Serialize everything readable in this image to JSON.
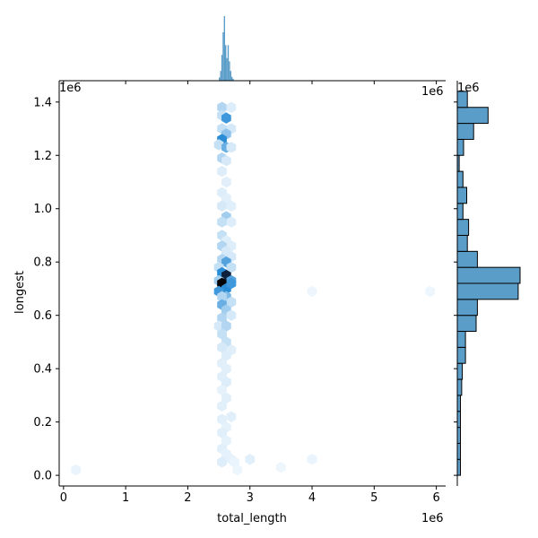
{
  "chart_data": {
    "type": "scatter",
    "subtype": "hexbin joint plot with marginal histograms",
    "xlabel": "total_length",
    "ylabel": "longest",
    "x_offset_label": "1e6",
    "y_offset_label": "1e6",
    "x_ticks": [
      "0",
      "1",
      "2",
      "3",
      "4",
      "5",
      "6"
    ],
    "y_ticks": [
      "0.0",
      "0.2",
      "0.4",
      "0.6",
      "0.8",
      "1.0",
      "1.2",
      "1.4"
    ],
    "x_tick_values": [
      0,
      1,
      2,
      3,
      4,
      5,
      6
    ],
    "y_tick_values": [
      0,
      0.2,
      0.4,
      0.6,
      0.8,
      1.0,
      1.2,
      1.4
    ],
    "xlim": [
      -0.07,
      6.15
    ],
    "ylim": [
      -0.04,
      1.48
    ],
    "units": "x1e6",
    "grid": false,
    "colors": {
      "hex_max": "#000000",
      "hex_mid": "#2b8cd6",
      "hex_low": "#eaf4fc",
      "hist_fill": "#5b9dc9",
      "hist_edge": "#000000"
    },
    "hexbins": [
      {
        "x": 2.55,
        "y": 1.38,
        "c": 0.25
      },
      {
        "x": 2.7,
        "y": 1.38,
        "c": 0.12
      },
      {
        "x": 2.55,
        "y": 1.35,
        "c": 0.2
      },
      {
        "x": 2.62,
        "y": 1.34,
        "c": 0.55
      },
      {
        "x": 2.7,
        "y": 1.3,
        "c": 0.15
      },
      {
        "x": 2.55,
        "y": 1.3,
        "c": 0.2
      },
      {
        "x": 2.62,
        "y": 1.28,
        "c": 0.35
      },
      {
        "x": 2.55,
        "y": 1.26,
        "c": 0.6
      },
      {
        "x": 2.5,
        "y": 1.24,
        "c": 0.2
      },
      {
        "x": 2.62,
        "y": 1.23,
        "c": 0.45
      },
      {
        "x": 2.7,
        "y": 1.23,
        "c": 0.15
      },
      {
        "x": 2.55,
        "y": 1.19,
        "c": 0.25
      },
      {
        "x": 2.62,
        "y": 1.18,
        "c": 0.15
      },
      {
        "x": 2.55,
        "y": 1.14,
        "c": 0.12
      },
      {
        "x": 2.62,
        "y": 1.1,
        "c": 0.1
      },
      {
        "x": 2.55,
        "y": 1.06,
        "c": 0.12
      },
      {
        "x": 2.62,
        "y": 1.04,
        "c": 0.1
      },
      {
        "x": 2.55,
        "y": 1.01,
        "c": 0.15
      },
      {
        "x": 2.7,
        "y": 1.01,
        "c": 0.1
      },
      {
        "x": 2.62,
        "y": 0.97,
        "c": 0.3
      },
      {
        "x": 2.7,
        "y": 0.95,
        "c": 0.12
      },
      {
        "x": 2.55,
        "y": 0.95,
        "c": 0.2
      },
      {
        "x": 2.55,
        "y": 0.9,
        "c": 0.2
      },
      {
        "x": 2.62,
        "y": 0.88,
        "c": 0.12
      },
      {
        "x": 2.7,
        "y": 0.86,
        "c": 0.12
      },
      {
        "x": 2.55,
        "y": 0.86,
        "c": 0.25
      },
      {
        "x": 2.62,
        "y": 0.84,
        "c": 0.15
      },
      {
        "x": 2.7,
        "y": 0.82,
        "c": 0.15
      },
      {
        "x": 2.55,
        "y": 0.81,
        "c": 0.25
      },
      {
        "x": 2.62,
        "y": 0.8,
        "c": 0.5
      },
      {
        "x": 2.7,
        "y": 0.78,
        "c": 0.2
      },
      {
        "x": 2.5,
        "y": 0.78,
        "c": 0.2
      },
      {
        "x": 2.55,
        "y": 0.76,
        "c": 0.6
      },
      {
        "x": 2.62,
        "y": 0.75,
        "c": 0.9
      },
      {
        "x": 2.7,
        "y": 0.73,
        "c": 0.5
      },
      {
        "x": 2.5,
        "y": 0.73,
        "c": 0.3
      },
      {
        "x": 2.55,
        "y": 0.72,
        "c": 1.0
      },
      {
        "x": 2.62,
        "y": 0.7,
        "c": 0.6
      },
      {
        "x": 2.7,
        "y": 0.72,
        "c": 0.55
      },
      {
        "x": 2.5,
        "y": 0.69,
        "c": 0.55
      },
      {
        "x": 2.62,
        "y": 0.67,
        "c": 0.4
      },
      {
        "x": 2.55,
        "y": 0.67,
        "c": 0.25
      },
      {
        "x": 2.7,
        "y": 0.65,
        "c": 0.2
      },
      {
        "x": 2.55,
        "y": 0.64,
        "c": 0.45
      },
      {
        "x": 2.62,
        "y": 0.62,
        "c": 0.3
      },
      {
        "x": 2.55,
        "y": 0.59,
        "c": 0.25
      },
      {
        "x": 2.7,
        "y": 0.6,
        "c": 0.15
      },
      {
        "x": 2.5,
        "y": 0.56,
        "c": 0.15
      },
      {
        "x": 2.62,
        "y": 0.56,
        "c": 0.25
      },
      {
        "x": 2.55,
        "y": 0.53,
        "c": 0.2
      },
      {
        "x": 2.62,
        "y": 0.5,
        "c": 0.2
      },
      {
        "x": 2.55,
        "y": 0.48,
        "c": 0.15
      },
      {
        "x": 2.7,
        "y": 0.47,
        "c": 0.1
      },
      {
        "x": 2.62,
        "y": 0.45,
        "c": 0.12
      },
      {
        "x": 2.55,
        "y": 0.42,
        "c": 0.1
      },
      {
        "x": 2.62,
        "y": 0.4,
        "c": 0.1
      },
      {
        "x": 2.55,
        "y": 0.37,
        "c": 0.1
      },
      {
        "x": 2.62,
        "y": 0.35,
        "c": 0.12
      },
      {
        "x": 2.55,
        "y": 0.32,
        "c": 0.08
      },
      {
        "x": 2.62,
        "y": 0.29,
        "c": 0.1
      },
      {
        "x": 2.55,
        "y": 0.26,
        "c": 0.1
      },
      {
        "x": 2.7,
        "y": 0.22,
        "c": 0.1
      },
      {
        "x": 2.55,
        "y": 0.21,
        "c": 0.1
      },
      {
        "x": 2.62,
        "y": 0.18,
        "c": 0.08
      },
      {
        "x": 2.55,
        "y": 0.16,
        "c": 0.1
      },
      {
        "x": 2.62,
        "y": 0.13,
        "c": 0.08
      },
      {
        "x": 2.55,
        "y": 0.1,
        "c": 0.1
      },
      {
        "x": 2.62,
        "y": 0.08,
        "c": 0.08
      },
      {
        "x": 2.55,
        "y": 0.05,
        "c": 0.12
      },
      {
        "x": 2.7,
        "y": 0.06,
        "c": 0.08
      },
      {
        "x": 3.0,
        "y": 0.06,
        "c": 0.1
      },
      {
        "x": 0.2,
        "y": 0.02,
        "c": 0.06
      },
      {
        "x": 3.5,
        "y": 0.03,
        "c": 0.05
      },
      {
        "x": 4.0,
        "y": 0.06,
        "c": 0.06
      },
      {
        "x": 4.0,
        "y": 0.69,
        "c": 0.05
      },
      {
        "x": 5.9,
        "y": 0.69,
        "c": 0.05
      },
      {
        "x": 2.75,
        "y": 0.05,
        "c": 0.06
      },
      {
        "x": 2.8,
        "y": 0.02,
        "c": 0.05
      }
    ],
    "top_histogram": {
      "bins": [
        {
          "x": 2.51,
          "h": 0.05
        },
        {
          "x": 2.53,
          "h": 0.15
        },
        {
          "x": 2.55,
          "h": 0.4
        },
        {
          "x": 2.57,
          "h": 0.75
        },
        {
          "x": 2.59,
          "h": 1.0
        },
        {
          "x": 2.61,
          "h": 0.55
        },
        {
          "x": 2.63,
          "h": 0.35
        },
        {
          "x": 2.65,
          "h": 0.55
        },
        {
          "x": 2.67,
          "h": 0.3
        },
        {
          "x": 2.69,
          "h": 0.15
        },
        {
          "x": 2.71,
          "h": 0.06
        },
        {
          "x": 2.73,
          "h": 0.03
        }
      ]
    },
    "right_histogram": {
      "bins": [
        {
          "y": 0.0,
          "w": 0.05
        },
        {
          "y": 0.06,
          "w": 0.05
        },
        {
          "y": 0.12,
          "w": 0.05
        },
        {
          "y": 0.18,
          "w": 0.05
        },
        {
          "y": 0.24,
          "w": 0.05
        },
        {
          "y": 0.3,
          "w": 0.07
        },
        {
          "y": 0.36,
          "w": 0.08
        },
        {
          "y": 0.42,
          "w": 0.13
        },
        {
          "y": 0.48,
          "w": 0.13
        },
        {
          "y": 0.54,
          "w": 0.3
        },
        {
          "y": 0.6,
          "w": 0.32
        },
        {
          "y": 0.66,
          "w": 0.97
        },
        {
          "y": 0.72,
          "w": 1.0
        },
        {
          "y": 0.78,
          "w": 0.32
        },
        {
          "y": 0.84,
          "w": 0.16
        },
        {
          "y": 0.9,
          "w": 0.18
        },
        {
          "y": 0.96,
          "w": 0.09
        },
        {
          "y": 1.02,
          "w": 0.15
        },
        {
          "y": 1.08,
          "w": 0.09
        },
        {
          "y": 1.14,
          "w": 0.03
        },
        {
          "y": 1.2,
          "w": 0.1
        },
        {
          "y": 1.26,
          "w": 0.26
        },
        {
          "y": 1.32,
          "w": 0.49
        },
        {
          "y": 1.38,
          "w": 0.16
        }
      ],
      "bin_height": 0.06
    }
  }
}
